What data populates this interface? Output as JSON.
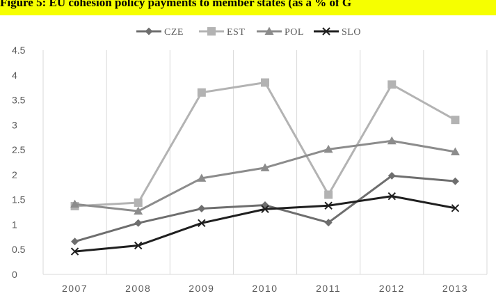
{
  "title": "Figure 5: EU cohesion policy payments to member states (as a % of G",
  "chart_data": {
    "type": "line",
    "title": "Figure 5: EU cohesion policy payments to member states (as a % of G",
    "xlabel": "",
    "ylabel": "",
    "categories": [
      "2007",
      "2008",
      "2009",
      "2010",
      "2011",
      "2012",
      "2013"
    ],
    "ylim": [
      0,
      4.5
    ],
    "yticks": [
      "0",
      "0.5",
      "1",
      "1.5",
      "2",
      "2.5",
      "3",
      "3.5",
      "4",
      "4.5"
    ],
    "grid": "vertical",
    "legend_position": "top",
    "series": [
      {
        "name": "CZE",
        "marker": "diamond",
        "color": "#6e6e6e",
        "values": [
          0.66,
          1.03,
          1.32,
          1.39,
          1.04,
          1.98,
          1.87
        ]
      },
      {
        "name": "EST",
        "marker": "square",
        "color": "#b3b3b3",
        "values": [
          1.37,
          1.44,
          3.65,
          3.85,
          1.6,
          3.81,
          3.1
        ]
      },
      {
        "name": "POL",
        "marker": "triangle",
        "color": "#8c8c8c",
        "values": [
          1.41,
          1.27,
          1.93,
          2.14,
          2.51,
          2.68,
          2.46
        ]
      },
      {
        "name": "SLO",
        "marker": "x",
        "color": "#1f1f1f",
        "values": [
          0.46,
          0.58,
          1.03,
          1.31,
          1.38,
          1.57,
          1.33
        ]
      }
    ]
  }
}
